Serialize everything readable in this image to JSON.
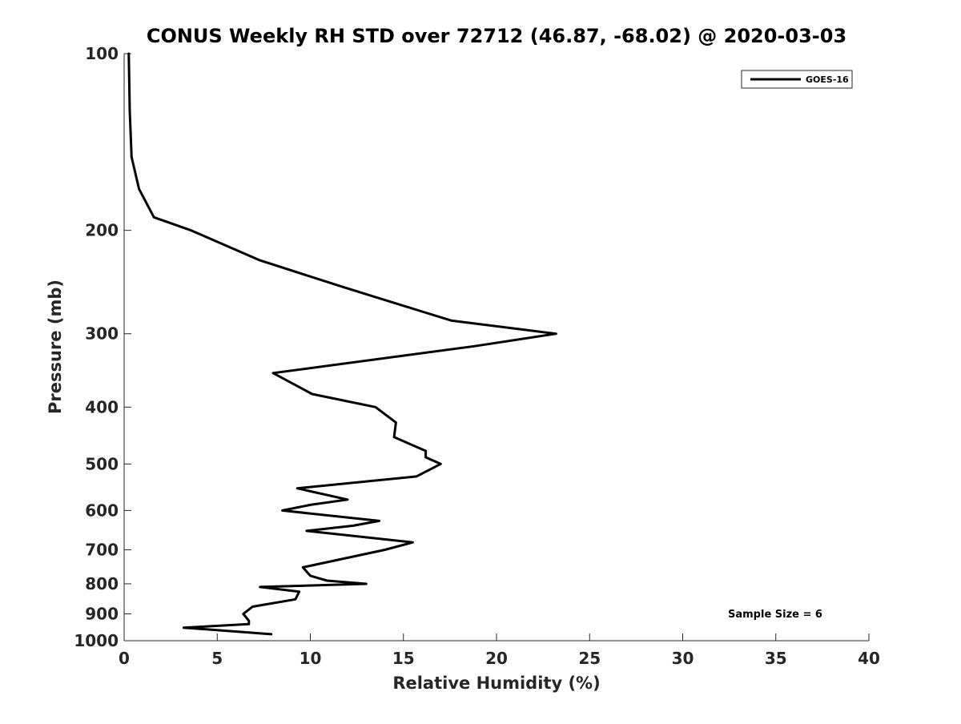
{
  "chart_data": {
    "type": "line",
    "title": "CONUS Weekly RH STD over 72712 (46.87, -68.02) @ 2020-03-03",
    "xlabel": "Relative Humidity (%)",
    "ylabel": "Pressure (mb)",
    "xlim": [
      0,
      40
    ],
    "ylim": [
      100,
      1000
    ],
    "y_scale": "log",
    "y_reversed": true,
    "x_ticks": [
      "0",
      "5",
      "10",
      "15",
      "20",
      "25",
      "30",
      "35",
      "40"
    ],
    "y_ticks": [
      "100",
      "200",
      "300",
      "400",
      "500",
      "600",
      "700",
      "800",
      "900",
      "1000"
    ],
    "grid": false,
    "legend_position": "top-right",
    "series": [
      {
        "name": "GOES-16",
        "color": "#000000",
        "points": [
          [
            0.25,
            100
          ],
          [
            0.3,
            125
          ],
          [
            0.4,
            150
          ],
          [
            0.8,
            170
          ],
          [
            1.6,
            190
          ],
          [
            3.6,
            200
          ],
          [
            7.3,
            225
          ],
          [
            11.8,
            250
          ],
          [
            16.0,
            275
          ],
          [
            17.6,
            285
          ],
          [
            23.2,
            300
          ],
          [
            18.8,
            315
          ],
          [
            8.0,
            350
          ],
          [
            10.1,
            380
          ],
          [
            13.5,
            400
          ],
          [
            14.6,
            425
          ],
          [
            14.5,
            450
          ],
          [
            16.2,
            475
          ],
          [
            16.2,
            487
          ],
          [
            17.0,
            500
          ],
          [
            15.7,
            525
          ],
          [
            9.3,
            550
          ],
          [
            12.0,
            575
          ],
          [
            10.0,
            587
          ],
          [
            8.5,
            600
          ],
          [
            13.7,
            625
          ],
          [
            12.3,
            637
          ],
          [
            9.8,
            650
          ],
          [
            15.5,
            680
          ],
          [
            14.0,
            700
          ],
          [
            9.6,
            750
          ],
          [
            10.0,
            775
          ],
          [
            10.9,
            790
          ],
          [
            13.0,
            800
          ],
          [
            7.3,
            810
          ],
          [
            9.4,
            825
          ],
          [
            9.2,
            850
          ],
          [
            6.9,
            875
          ],
          [
            6.4,
            900
          ],
          [
            6.7,
            925
          ],
          [
            6.7,
            937
          ],
          [
            3.2,
            950
          ],
          [
            7.9,
            975
          ]
        ]
      }
    ],
    "annotations": [
      "Sample Size = 6"
    ]
  }
}
